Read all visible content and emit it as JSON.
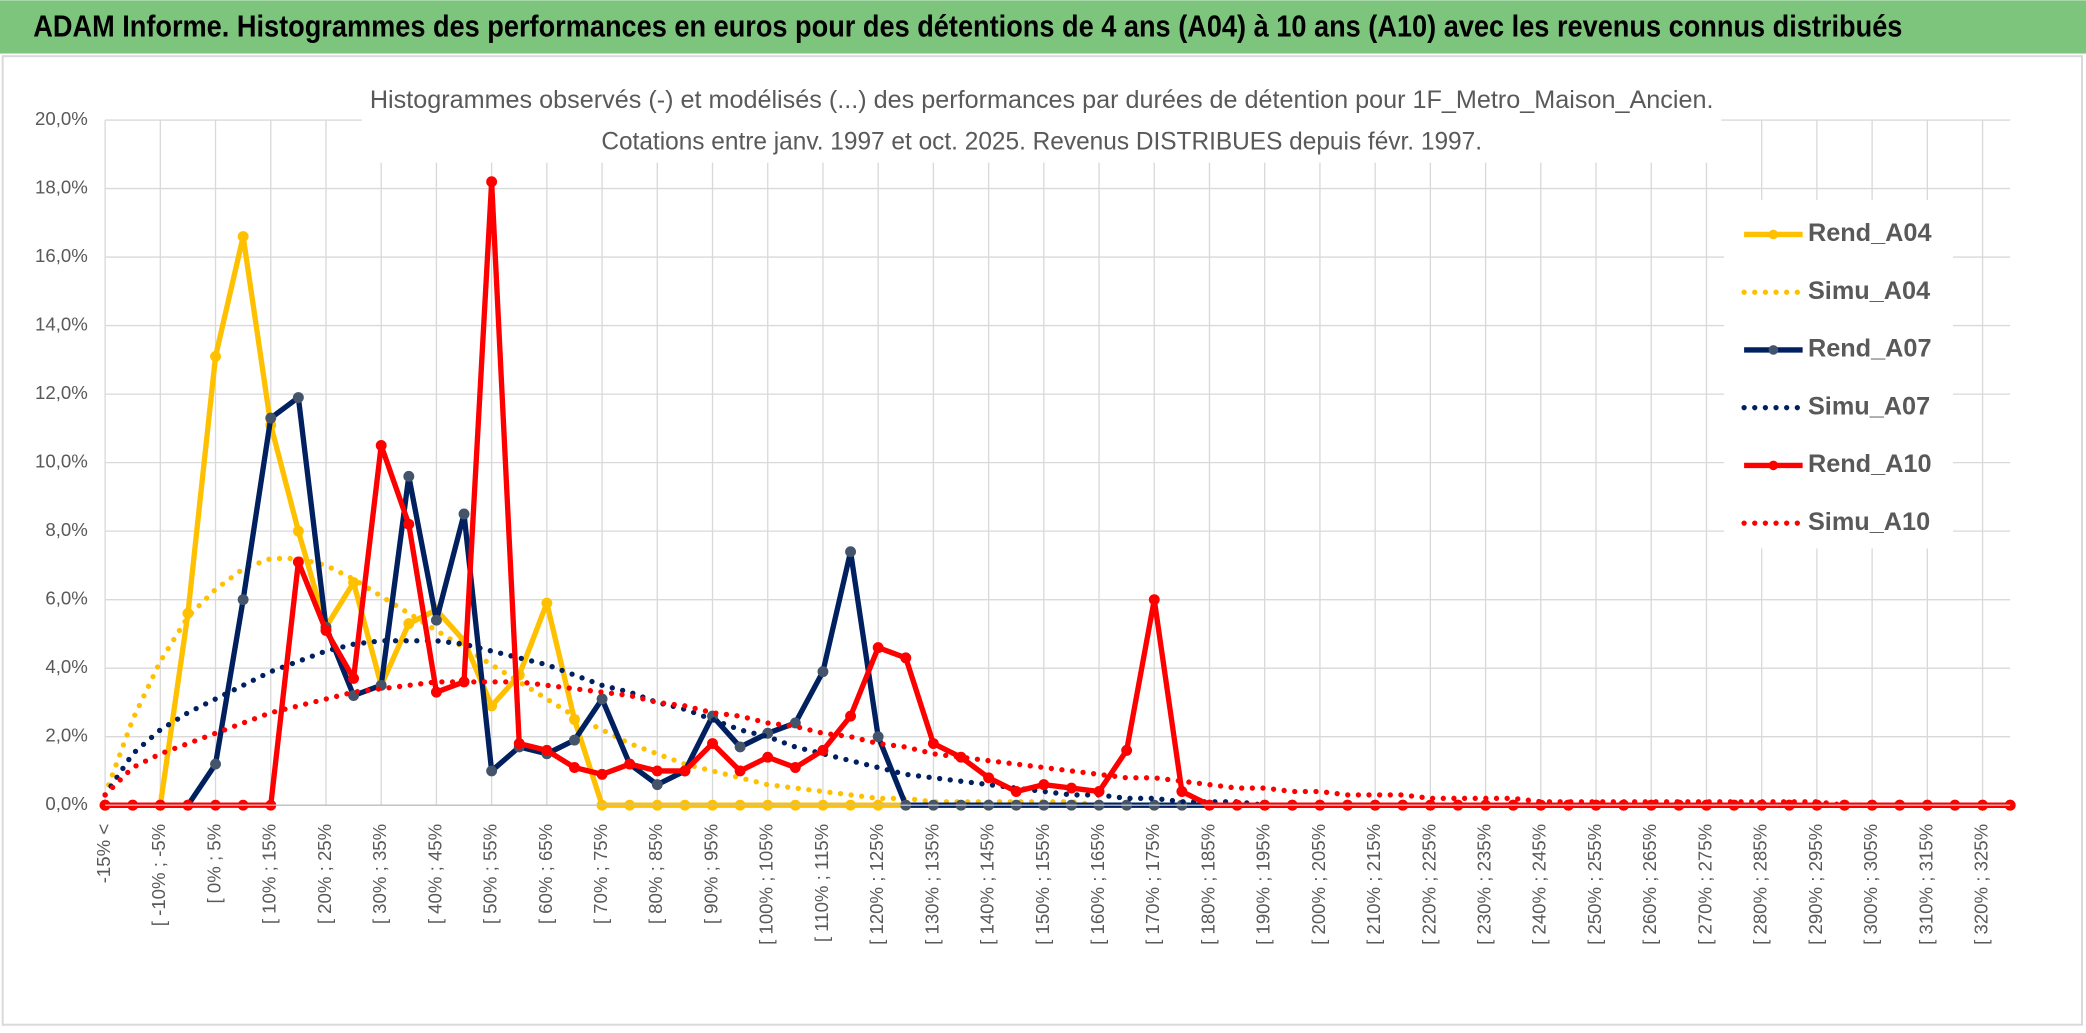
{
  "chart_data": {
    "type": "line",
    "header": "ADAM Informe. Histogrammes des performances en euros pour des détentions de 4 ans (A04) à 10 ans (A10) avec les revenus connus distribués",
    "title": "Histogrammes observés (-) et modélisés (...) des performances par durées de détention pour 1F_Metro_Maison_Ancien.",
    "subtitle": "Cotations entre janv. 1997 et oct. 2025. Revenus DISTRIBUES depuis févr. 1997.",
    "categories": [
      "-15% <",
      null,
      "[ -10% ; -5%",
      null,
      "[ 0% ; 5%",
      null,
      "[ 10% ; 15%",
      null,
      "[ 20% ; 25%",
      null,
      "[ 30% ; 35%",
      null,
      "[ 40% ; 45%",
      null,
      "[ 50% ; 55%",
      null,
      "[ 60% ; 65%",
      null,
      "[ 70% ; 75%",
      null,
      "[ 80% ; 85%",
      null,
      "[ 90% ; 95%",
      null,
      "[ 100% ; 105%",
      null,
      "[ 110% ; 115%",
      null,
      "[ 120% ; 125%",
      null,
      "[ 130% ; 135%",
      null,
      "[ 140% ; 145%",
      null,
      "[ 150% ; 155%",
      null,
      "[ 160% ; 165%",
      null,
      "[ 170% ; 175%",
      null,
      "[ 180% ; 185%",
      null,
      "[ 190% ; 195%",
      null,
      "[ 200% ; 205%",
      null,
      "[ 210% ; 215%",
      null,
      "[ 220% ; 225%",
      null,
      "[ 230% ; 235%",
      null,
      "[ 240% ; 245%",
      null,
      "[ 250% ; 255%",
      null,
      "[ 260% ; 265%",
      null,
      "[ 270% ; 275%",
      null,
      "[ 280% ; 285%",
      null,
      "[ 290% ; 295%",
      null,
      "[ 300% ; 305%",
      null,
      "[ 310% ; 315%",
      null,
      "[ 320% ; 325%",
      null
    ],
    "ylim": [
      0,
      20
    ],
    "yticks": [
      {
        "value": 0,
        "label": "0,0%"
      },
      {
        "value": 2,
        "label": "2,0%"
      },
      {
        "value": 4,
        "label": "4,0%"
      },
      {
        "value": 6,
        "label": "6,0%"
      },
      {
        "value": 8,
        "label": "8,0%"
      },
      {
        "value": 10,
        "label": "10,0%"
      },
      {
        "value": 12,
        "label": "12,0%"
      },
      {
        "value": 14,
        "label": "14,0%"
      },
      {
        "value": 16,
        "label": "16,0%"
      },
      {
        "value": 18,
        "label": "18,0%"
      },
      {
        "value": 20,
        "label": "20,0%"
      }
    ],
    "grid": true,
    "legend": "right",
    "series": [
      {
        "name": "Rend_A04",
        "color": "#FFC000",
        "marker_color": "#FFC000",
        "line_style": "solid",
        "marker": true,
        "values": [
          0,
          0,
          0,
          5.6,
          13.1,
          16.6,
          11.1,
          8.0,
          5.2,
          6.5,
          3.5,
          5.3,
          5.7,
          4.8,
          2.9,
          3.8,
          5.9,
          2.5,
          0,
          0,
          0,
          0,
          0,
          0,
          0,
          0,
          0,
          0,
          0,
          0,
          0,
          0,
          0,
          0,
          0,
          0,
          0,
          0,
          0,
          0,
          0,
          0,
          0,
          0,
          0,
          0,
          0,
          0,
          0,
          0,
          0,
          0,
          0,
          0,
          0,
          0,
          0,
          0,
          0,
          0,
          0,
          0,
          0,
          0,
          0,
          0,
          0,
          0,
          0,
          0
        ]
      },
      {
        "name": "Simu_A04",
        "color": "#FFC000",
        "marker_color": "#FFC000",
        "line_style": "dotted",
        "marker": false,
        "values": [
          0.3,
          2.5,
          4.2,
          5.5,
          6.3,
          6.9,
          7.2,
          7.2,
          7.0,
          6.6,
          6.1,
          5.6,
          5.1,
          4.6,
          4.1,
          3.6,
          3.1,
          2.6,
          2.2,
          1.8,
          1.5,
          1.2,
          1.0,
          0.8,
          0.6,
          0.5,
          0.4,
          0.3,
          0.2,
          0.2,
          0.1,
          0.1,
          0.1,
          0.1,
          0.1,
          0.1,
          0,
          0,
          0,
          0,
          0,
          0,
          0,
          0,
          0,
          0,
          0,
          0,
          0,
          0,
          0,
          0,
          0,
          0,
          0,
          0,
          0,
          0,
          0,
          0,
          0,
          0,
          0,
          0,
          0,
          0,
          0,
          0,
          0,
          0
        ]
      },
      {
        "name": "Rend_A07",
        "color": "#002060",
        "marker_color": "#44546A",
        "line_style": "solid",
        "marker": true,
        "values": [
          0,
          0,
          0,
          0,
          1.2,
          6.0,
          11.3,
          11.9,
          5.2,
          3.2,
          3.5,
          9.6,
          5.4,
          8.5,
          1.0,
          1.7,
          1.5,
          1.9,
          3.1,
          1.2,
          0.6,
          1.0,
          2.6,
          1.7,
          2.1,
          2.4,
          3.9,
          7.4,
          2.0,
          0,
          0,
          0,
          0,
          0,
          0,
          0,
          0,
          0,
          0,
          0,
          0,
          0,
          0,
          0,
          0,
          0,
          0,
          0,
          0,
          0,
          0,
          0,
          0,
          0,
          0,
          0,
          0,
          0,
          0,
          0,
          0,
          0,
          0,
          0,
          0,
          0,
          0,
          0,
          0,
          0
        ]
      },
      {
        "name": "Simu_A07",
        "color": "#002060",
        "marker_color": "#002060",
        "line_style": "dotted",
        "marker": false,
        "values": [
          0.3,
          1.5,
          2.2,
          2.7,
          3.1,
          3.5,
          3.9,
          4.2,
          4.5,
          4.7,
          4.8,
          4.8,
          4.8,
          4.7,
          4.5,
          4.3,
          4.1,
          3.8,
          3.5,
          3.3,
          3.0,
          2.8,
          2.5,
          2.2,
          2.0,
          1.7,
          1.5,
          1.3,
          1.1,
          0.9,
          0.8,
          0.7,
          0.6,
          0.5,
          0.4,
          0.3,
          0.3,
          0.2,
          0.2,
          0.1,
          0.1,
          0.1,
          0,
          0,
          0,
          0,
          0,
          0,
          0,
          0,
          0,
          0,
          0,
          0,
          0,
          0,
          0,
          0,
          0,
          0,
          0,
          0,
          0,
          0,
          0,
          0,
          0,
          0,
          0,
          0
        ]
      },
      {
        "name": "Rend_A10",
        "color": "#FF0000",
        "marker_color": "#FF0000",
        "line_style": "solid",
        "marker": true,
        "values": [
          0,
          0,
          0,
          0,
          0,
          0,
          0,
          7.1,
          5.1,
          3.7,
          10.5,
          8.2,
          3.3,
          3.6,
          18.2,
          1.8,
          1.6,
          1.1,
          0.9,
          1.2,
          1.0,
          1.0,
          1.8,
          1.0,
          1.4,
          1.1,
          1.6,
          2.6,
          4.6,
          4.3,
          1.8,
          1.4,
          0.8,
          0.4,
          0.6,
          0.5,
          0.4,
          1.6,
          6.0,
          0.4,
          0,
          0,
          0,
          0,
          0,
          0,
          0,
          0,
          0,
          0,
          0,
          0,
          0,
          0,
          0,
          0,
          0,
          0,
          0,
          0,
          0,
          0,
          0,
          0,
          0,
          0,
          0,
          0,
          0,
          0
        ]
      },
      {
        "name": "Simu_A10",
        "color": "#FF0000",
        "marker_color": "#FF0000",
        "line_style": "dotted",
        "marker": false,
        "values": [
          0.3,
          1.1,
          1.5,
          1.8,
          2.1,
          2.4,
          2.7,
          2.9,
          3.1,
          3.3,
          3.4,
          3.5,
          3.6,
          3.6,
          3.6,
          3.6,
          3.5,
          3.4,
          3.3,
          3.2,
          3.0,
          2.9,
          2.7,
          2.6,
          2.4,
          2.3,
          2.1,
          2.0,
          1.8,
          1.7,
          1.5,
          1.4,
          1.3,
          1.2,
          1.1,
          1.0,
          0.9,
          0.8,
          0.8,
          0.7,
          0.6,
          0.5,
          0.5,
          0.4,
          0.4,
          0.3,
          0.3,
          0.3,
          0.2,
          0.2,
          0.2,
          0.2,
          0.1,
          0.1,
          0.1,
          0.1,
          0.1,
          0.1,
          0.1,
          0.1,
          0.1,
          0.1,
          0.1,
          0,
          0,
          0,
          0,
          0,
          0,
          0
        ]
      }
    ]
  }
}
